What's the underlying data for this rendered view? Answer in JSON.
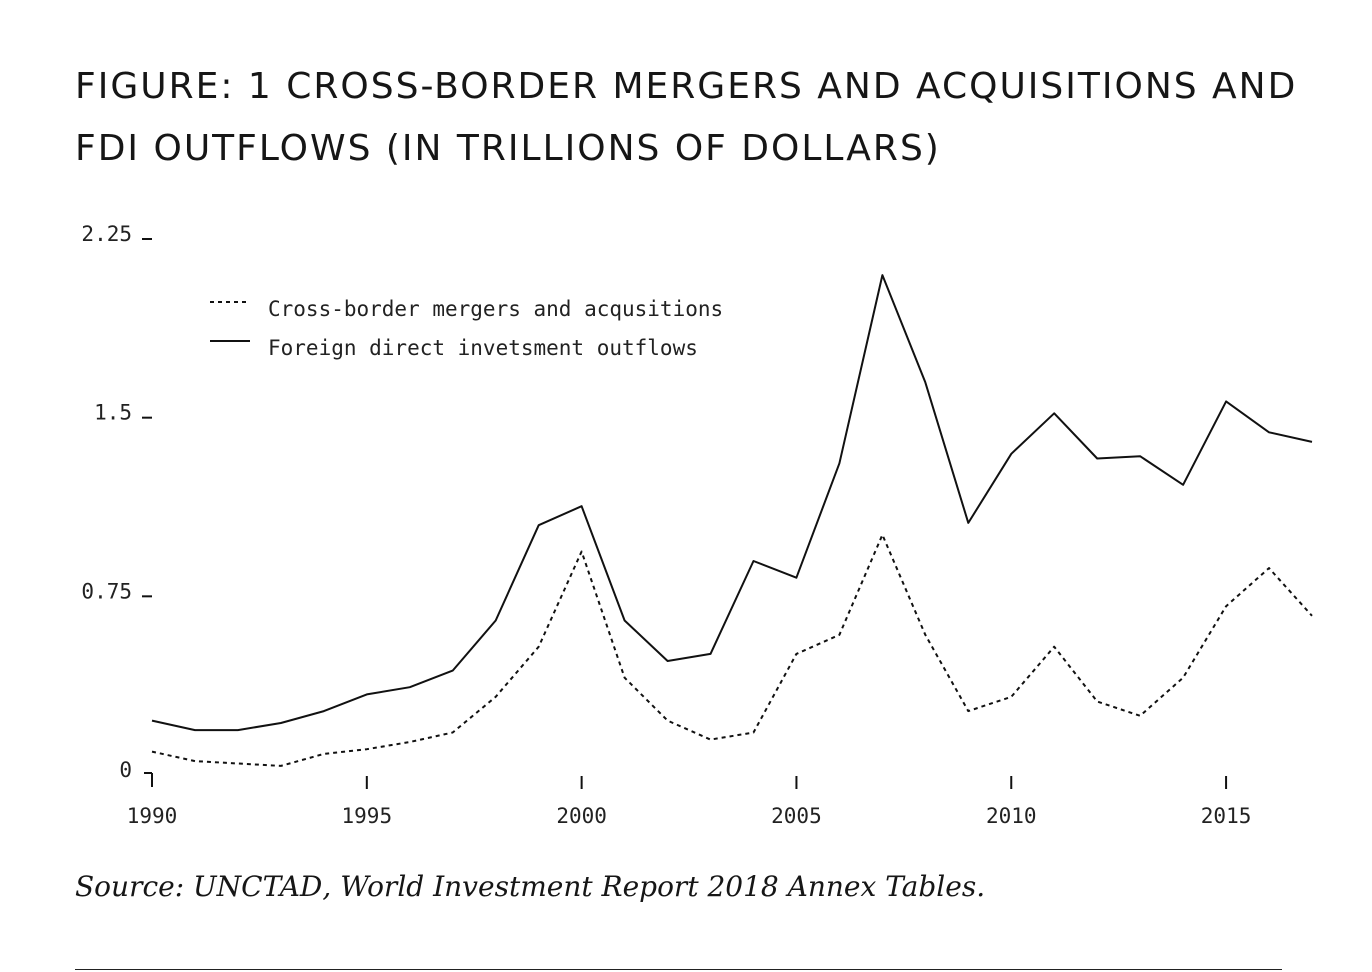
{
  "title": "FIGURE: 1 CROSS-BORDER MERGERS AND ACQUISITIONS AND FDI OUTFLOWS (IN TRILLIONS OF DOLLARS)",
  "source": {
    "prefix": "Source: ",
    "org": "UNCTAD",
    "rest": ", World Investment Report 2018 Annex Tables."
  },
  "chart_data": {
    "type": "line",
    "title": "FIGURE: 1 CROSS-BORDER MERGERS AND ACQUISITIONS AND FDI OUTFLOWS (IN TRILLIONS OF DOLLARS)",
    "xlabel": "",
    "ylabel": "",
    "xlim": [
      1990,
      2017
    ],
    "ylim": [
      0,
      2.25
    ],
    "x_ticks": [
      1990,
      1995,
      2000,
      2005,
      2010,
      2015
    ],
    "x_tick_labels": [
      "1990",
      "1995",
      "2000",
      "2005",
      "2010",
      "2015"
    ],
    "y_ticks": [
      0,
      0.75,
      1.5,
      2.25
    ],
    "y_tick_labels": [
      "0",
      "0.75",
      "1.5",
      "2.25"
    ],
    "grid": false,
    "legend_position": "top-left",
    "x": [
      1990,
      1991,
      1992,
      1993,
      1994,
      1995,
      1996,
      1997,
      1998,
      1999,
      2000,
      2001,
      2002,
      2003,
      2004,
      2005,
      2006,
      2007,
      2008,
      2009,
      2010,
      2011,
      2012,
      2013,
      2014,
      2015,
      2016,
      2017
    ],
    "series": [
      {
        "name": "Cross-border mergers and acqusitions",
        "style": "dashed",
        "color": "#111111",
        "values": [
          0.09,
          0.05,
          0.04,
          0.03,
          0.08,
          0.1,
          0.13,
          0.17,
          0.32,
          0.53,
          0.93,
          0.4,
          0.22,
          0.14,
          0.17,
          0.5,
          0.58,
          1.0,
          0.58,
          0.26,
          0.32,
          0.53,
          0.3,
          0.24,
          0.4,
          0.7,
          0.86,
          0.66
        ]
      },
      {
        "name": "Foreign direct invetsment outflows",
        "style": "solid",
        "color": "#111111",
        "values": [
          0.22,
          0.18,
          0.18,
          0.21,
          0.26,
          0.33,
          0.36,
          0.43,
          0.64,
          1.04,
          1.12,
          0.64,
          0.47,
          0.5,
          0.89,
          0.82,
          1.3,
          2.09,
          1.64,
          1.05,
          1.34,
          1.51,
          1.32,
          1.33,
          1.21,
          1.56,
          1.43,
          1.39
        ]
      }
    ]
  }
}
